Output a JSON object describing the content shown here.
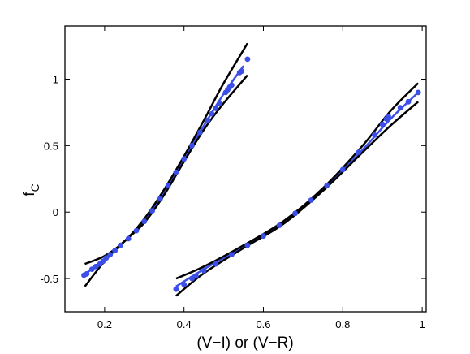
{
  "chart_data": {
    "type": "scatter",
    "title": "",
    "xlabel": "(V−I)  or (V−R)",
    "ylabel": "f",
    "ylabel_sub": "C",
    "xlim": [
      0.1,
      1.01
    ],
    "ylim": [
      -0.75,
      1.4
    ],
    "xticks": [
      0.2,
      0.4,
      0.6,
      0.8,
      1
    ],
    "xtick_labels": [
      "0.2",
      "0.4",
      "0.6",
      "0.8",
      "1"
    ],
    "yticks": [
      -0.5,
      0,
      0.5,
      1
    ],
    "ytick_labels": [
      "-0.5",
      "0",
      "0.5",
      "1"
    ],
    "grid": false,
    "colors": {
      "points": "#3b4fe8",
      "fit_line": "#3b4fe8",
      "bounds": "#000000"
    },
    "groups": [
      {
        "points": [
          [
            0.148,
            -0.475
          ],
          [
            0.155,
            -0.465
          ],
          [
            0.168,
            -0.43
          ],
          [
            0.178,
            -0.41
          ],
          [
            0.188,
            -0.39
          ],
          [
            0.196,
            -0.37
          ],
          [
            0.204,
            -0.345
          ],
          [
            0.214,
            -0.32
          ],
          [
            0.226,
            -0.29
          ],
          [
            0.24,
            -0.25
          ],
          [
            0.26,
            -0.2
          ],
          [
            0.28,
            -0.14
          ],
          [
            0.3,
            -0.07
          ],
          [
            0.32,
            0.01
          ],
          [
            0.34,
            0.1
          ],
          [
            0.36,
            0.2
          ],
          [
            0.38,
            0.3
          ],
          [
            0.4,
            0.4
          ],
          [
            0.42,
            0.5
          ],
          [
            0.44,
            0.6
          ],
          [
            0.46,
            0.69
          ],
          [
            0.47,
            0.74
          ],
          [
            0.48,
            0.78
          ],
          [
            0.49,
            0.82
          ],
          [
            0.505,
            0.9
          ],
          [
            0.51,
            0.92
          ],
          [
            0.515,
            0.94
          ],
          [
            0.52,
            0.955
          ],
          [
            0.54,
            1.05
          ],
          [
            0.545,
            1.06
          ],
          [
            0.56,
            1.15
          ]
        ],
        "fit": [
          [
            0.15,
            -0.47
          ],
          [
            0.2,
            -0.35
          ],
          [
            0.25,
            -0.22
          ],
          [
            0.3,
            -0.07
          ],
          [
            0.35,
            0.15
          ],
          [
            0.4,
            0.4
          ],
          [
            0.45,
            0.65
          ],
          [
            0.5,
            0.89
          ],
          [
            0.55,
            1.1
          ]
        ],
        "upper_bound": [
          [
            0.15,
            -0.39
          ],
          [
            0.2,
            -0.33
          ],
          [
            0.25,
            -0.22
          ],
          [
            0.3,
            -0.05
          ],
          [
            0.35,
            0.17
          ],
          [
            0.4,
            0.42
          ],
          [
            0.45,
            0.69
          ],
          [
            0.5,
            0.97
          ],
          [
            0.56,
            1.27
          ]
        ],
        "lower_bound": [
          [
            0.15,
            -0.56
          ],
          [
            0.2,
            -0.37
          ],
          [
            0.25,
            -0.22
          ],
          [
            0.3,
            -0.08
          ],
          [
            0.35,
            0.13
          ],
          [
            0.4,
            0.38
          ],
          [
            0.45,
            0.62
          ],
          [
            0.5,
            0.82
          ],
          [
            0.56,
            1.03
          ]
        ]
      },
      {
        "points": [
          [
            0.38,
            -0.58
          ],
          [
            0.4,
            -0.545
          ],
          [
            0.42,
            -0.5
          ],
          [
            0.43,
            -0.48
          ],
          [
            0.45,
            -0.44
          ],
          [
            0.48,
            -0.39
          ],
          [
            0.52,
            -0.32
          ],
          [
            0.56,
            -0.25
          ],
          [
            0.6,
            -0.18
          ],
          [
            0.64,
            -0.1
          ],
          [
            0.68,
            -0.01
          ],
          [
            0.72,
            0.09
          ],
          [
            0.76,
            0.2
          ],
          [
            0.8,
            0.32
          ],
          [
            0.84,
            0.45
          ],
          [
            0.88,
            0.58
          ],
          [
            0.9,
            0.66
          ],
          [
            0.91,
            0.7
          ],
          [
            0.915,
            0.72
          ],
          [
            0.945,
            0.785
          ],
          [
            0.965,
            0.83
          ],
          [
            0.99,
            0.9
          ]
        ],
        "fit": [
          [
            0.38,
            -0.56
          ],
          [
            0.45,
            -0.43
          ],
          [
            0.55,
            -0.26
          ],
          [
            0.65,
            -0.08
          ],
          [
            0.75,
            0.17
          ],
          [
            0.85,
            0.47
          ],
          [
            0.92,
            0.7
          ],
          [
            0.99,
            0.9
          ]
        ],
        "upper_bound": [
          [
            0.38,
            -0.5
          ],
          [
            0.45,
            -0.41
          ],
          [
            0.55,
            -0.25
          ],
          [
            0.65,
            -0.07
          ],
          [
            0.75,
            0.18
          ],
          [
            0.85,
            0.5
          ],
          [
            0.92,
            0.76
          ],
          [
            0.99,
            0.97
          ]
        ],
        "lower_bound": [
          [
            0.38,
            -0.63
          ],
          [
            0.45,
            -0.46
          ],
          [
            0.55,
            -0.27
          ],
          [
            0.65,
            -0.09
          ],
          [
            0.75,
            0.16
          ],
          [
            0.85,
            0.45
          ],
          [
            0.92,
            0.65
          ],
          [
            0.99,
            0.83
          ]
        ]
      }
    ]
  }
}
